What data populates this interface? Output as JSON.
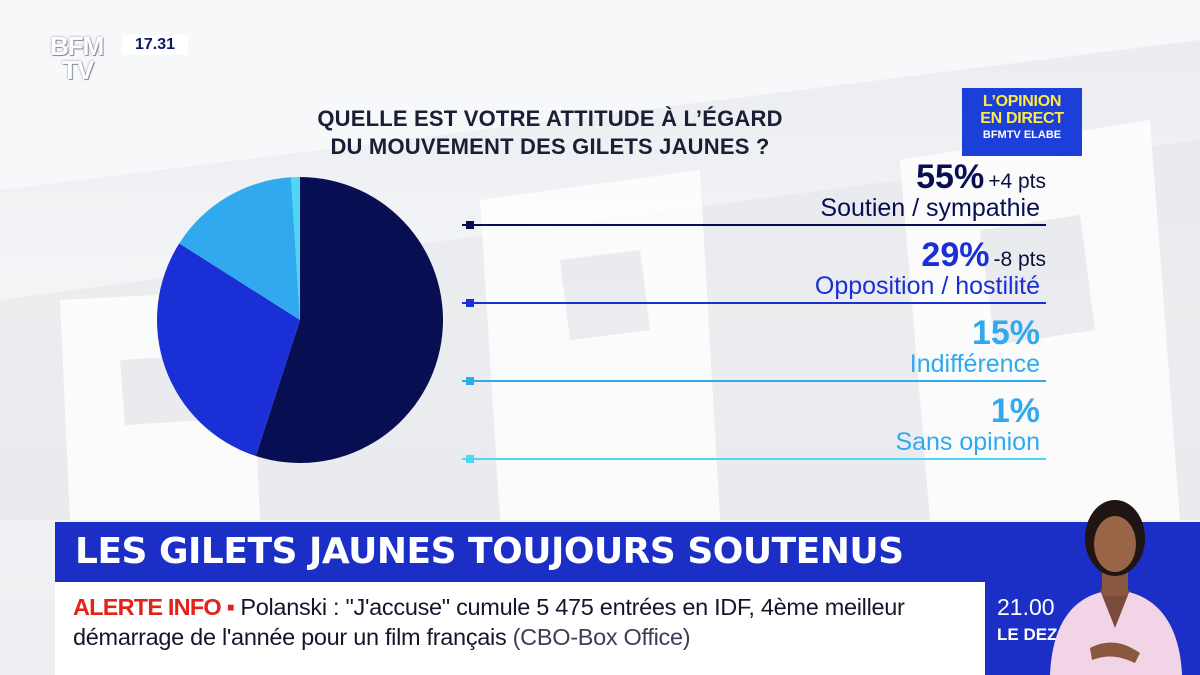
{
  "channel": {
    "logo_line1": "BFM",
    "logo_line2": "TV",
    "clock": "17.31"
  },
  "question": {
    "line1": "QUELLE EST VOTRE ATTITUDE À L’ÉGARD",
    "line2": "DU MOUVEMENT DES GILETS JAUNES ?"
  },
  "brand_box": {
    "line1": "L’OPINION",
    "line2": "EN DIRECT",
    "line3": "BFMTV ELABE"
  },
  "colors": {
    "navy": "#080e52",
    "blue": "#1b2fd6",
    "sky": "#31a9ee",
    "cyan": "#4fd6f5",
    "banner": "#1b2fc7",
    "alert_red": "#e32319",
    "brand_yellow": "#ffe94a"
  },
  "chart_data": {
    "type": "pie",
    "title": "QUELLE EST VOTRE ATTITUDE À L’ÉGARD DU MOUVEMENT DES GILETS JAUNES ?",
    "slices": [
      {
        "label": "Soutien / sympathie",
        "value": 55,
        "display": "55%",
        "delta": "+4 pts",
        "color": "#080e52"
      },
      {
        "label": "Opposition / hostilité",
        "value": 29,
        "display": "29%",
        "delta": "-8 pts",
        "color": "#1b2fd6"
      },
      {
        "label": "Indifférence",
        "value": 15,
        "display": "15%",
        "delta": "",
        "color": "#31a9ee"
      },
      {
        "label": "Sans opinion",
        "value": 1,
        "display": "1%",
        "delta": "",
        "color": "#4fd6f5"
      }
    ]
  },
  "banner": {
    "headline": "LES GILETS JAUNES TOUJOURS SOUTENUS"
  },
  "ticker": {
    "alert_label": "ALERTE INFO ▪",
    "text": "Polanski : \"J'accuse\" cumule 5 475 entrées en IDF, 4ème meilleur démarrage de l'année pour un film français",
    "source": "(CBO-Box Office)"
  },
  "show": {
    "time": "21.00",
    "title": "LE DEZOOM"
  }
}
